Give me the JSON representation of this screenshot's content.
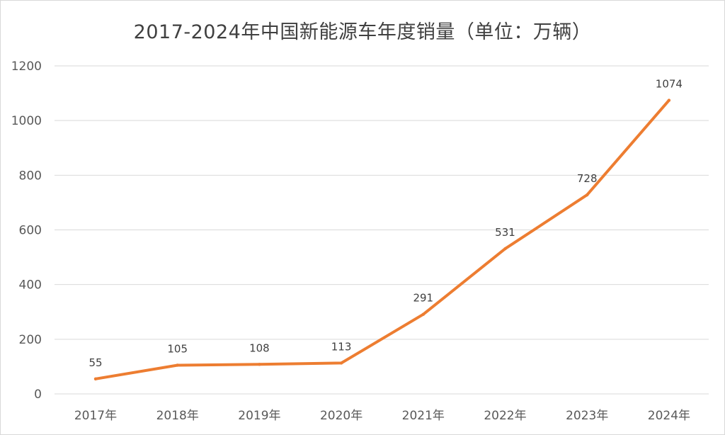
{
  "chart_data": {
    "type": "line",
    "title": "2017-2024年中国新能源车年度销量（单位：万辆）",
    "xlabel": "",
    "ylabel": "",
    "categories": [
      "2017年",
      "2018年",
      "2019年",
      "2020年",
      "2021年",
      "2022年",
      "2023年",
      "2024年"
    ],
    "series": [
      {
        "values": [
          55,
          105,
          108,
          113,
          291,
          531,
          728,
          1074
        ]
      }
    ],
    "data_labels": [
      "55",
      "105",
      "108",
      "113",
      "291",
      "531",
      "728",
      "1074"
    ],
    "ylim": [
      0,
      1200
    ],
    "yticks": [
      0,
      200,
      400,
      600,
      800,
      1000,
      1200
    ],
    "ytick_labels": [
      "0",
      "200",
      "400",
      "600",
      "800",
      "1000",
      "1200"
    ],
    "grid": true,
    "legend": "none",
    "line_color": "#ed7d31",
    "grid_color": "#d9d9d9"
  }
}
